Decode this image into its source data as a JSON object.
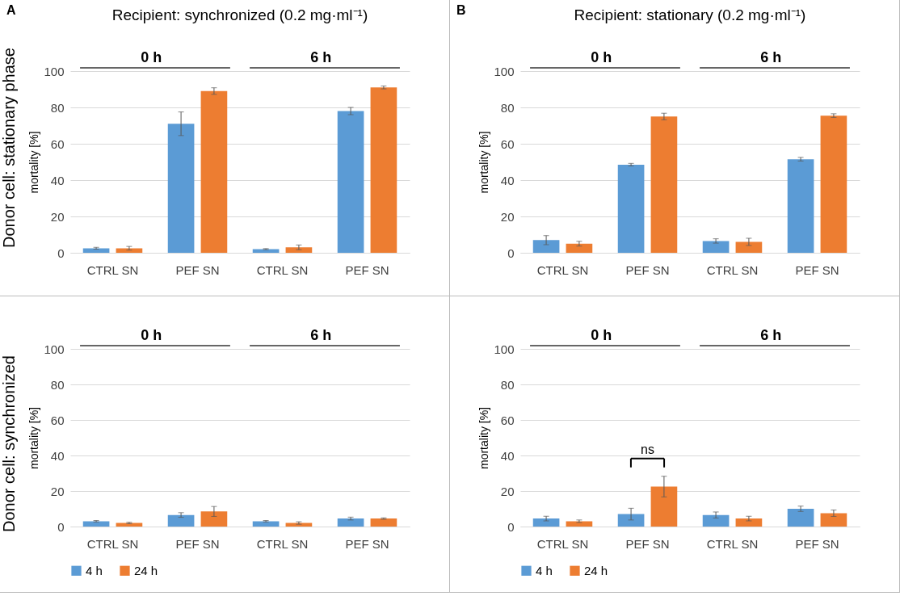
{
  "chart_data": [
    {
      "type": "bar",
      "title": "Recipient: synchronized (0.2 mg·ml⁻¹)",
      "ylabel": "mortality [%]",
      "categories": [
        "CTRL SN",
        "PEF SN",
        "CTRL SN",
        "PEF SN"
      ],
      "series": [
        {
          "color": "#5b9bd5",
          "values": [
            2.5,
            71,
            2,
            78
          ],
          "errors": [
            0.5,
            6.5,
            0.3,
            2
          ]
        },
        {
          "color": "#ed7d31",
          "values": [
            2.5,
            89,
            3,
            91
          ],
          "errors": [
            1,
            1.8,
            1.3,
            0.8
          ]
        }
      ],
      "ylim": [
        0,
        100
      ],
      "yticks": [
        0,
        20,
        40,
        60,
        80,
        100
      ],
      "grid": "y",
      "annotations": [
        "A",
        "Donor cell: stationary phase",
        "0 h",
        "6 h"
      ]
    },
    {
      "type": "bar",
      "title": "Recipient: stationary (0.2 mg·ml⁻¹)",
      "ylabel": "mortality [%]",
      "categories": [
        "CTRL SN",
        "PEF SN",
        "CTRL SN",
        "PEF SN"
      ],
      "series": [
        {
          "color": "#5b9bd5",
          "values": [
            7,
            48.5,
            6.5,
            51.5
          ],
          "errors": [
            2.5,
            0.7,
            1.2,
            1
          ]
        },
        {
          "color": "#ed7d31",
          "values": [
            5,
            75,
            6,
            75.5
          ],
          "errors": [
            1.3,
            1.8,
            2,
            1
          ]
        }
      ],
      "ylim": [
        0,
        100
      ],
      "yticks": [
        0,
        20,
        40,
        60,
        80,
        100
      ],
      "grid": "y",
      "annotations": [
        "B",
        "0 h",
        "6 h"
      ]
    },
    {
      "type": "bar",
      "ylabel": "mortality [%]",
      "categories": [
        "CTRL SN",
        "PEF SN",
        "CTRL SN",
        "PEF SN"
      ],
      "series": [
        {
          "name": "4 h",
          "color": "#5b9bd5",
          "values": [
            3,
            6.5,
            3,
            4.5
          ],
          "errors": [
            0.4,
            1.3,
            0.4,
            0.8
          ]
        },
        {
          "name": "24 h",
          "color": "#ed7d31",
          "values": [
            2,
            8.5,
            2,
            4.5
          ],
          "errors": [
            0.4,
            2.8,
            0.7,
            0.4
          ]
        }
      ],
      "ylim": [
        0,
        100
      ],
      "yticks": [
        0,
        20,
        40,
        60,
        80,
        100
      ],
      "grid": "y",
      "legend": "bottom",
      "annotations": [
        "Donor cell: synchronized",
        "0 h",
        "6 h"
      ]
    },
    {
      "type": "bar",
      "ylabel": "mortality [%]",
      "categories": [
        "CTRL SN",
        "PEF SN",
        "CTRL SN",
        "PEF SN"
      ],
      "series": [
        {
          "name": "4 h",
          "color": "#5b9bd5",
          "values": [
            4.5,
            7,
            6.5,
            10
          ],
          "errors": [
            1.3,
            3.3,
            1.7,
            1.5
          ]
        },
        {
          "name": "24 h",
          "color": "#ed7d31",
          "values": [
            3,
            22.5,
            4.5,
            7.5
          ],
          "errors": [
            0.7,
            5.8,
            1.3,
            1.8
          ]
        }
      ],
      "ylim": [
        0,
        100
      ],
      "yticks": [
        0,
        20,
        40,
        60,
        80,
        100
      ],
      "grid": "y",
      "legend": "bottom",
      "annotations": [
        "ns",
        "0 h",
        "6 h"
      ]
    }
  ]
}
